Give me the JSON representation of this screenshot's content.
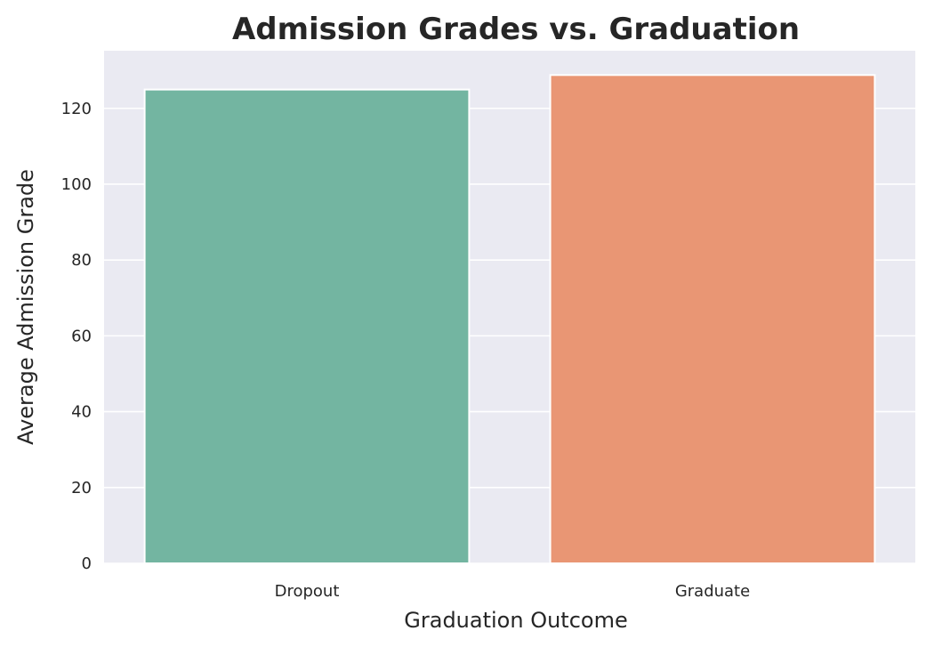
{
  "chart_data": {
    "type": "bar",
    "title": "Admission Grades vs. Graduation",
    "xlabel": "Graduation Outcome",
    "ylabel": "Average Admission Grade",
    "categories": [
      "Dropout",
      "Graduate"
    ],
    "values": [
      124.96,
      128.79
    ],
    "ylim": [
      0,
      135.2
    ],
    "yticks": [
      0,
      20,
      40,
      60,
      80,
      100,
      120
    ],
    "grid": true,
    "colors": {
      "background": "#eaeaf2",
      "grid": "#ffffff",
      "bars": [
        "#73b5a1",
        "#e99674"
      ]
    }
  }
}
